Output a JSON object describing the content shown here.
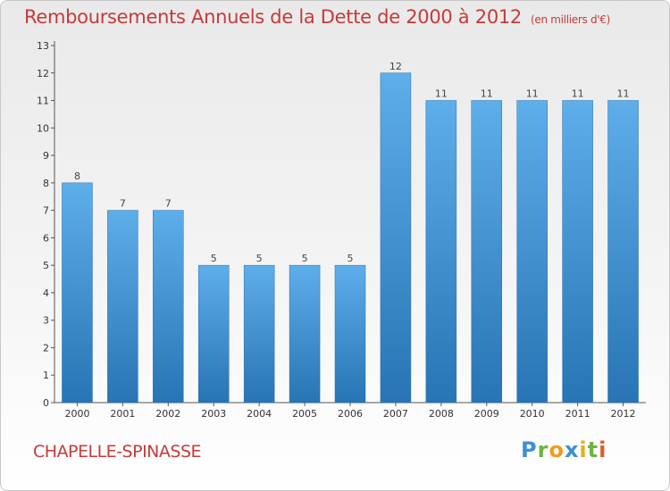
{
  "title": "Remboursements Annuels de la Dette de 2000 à 2012",
  "unit": "(en milliers d'€)",
  "commune": "CHAPELLE-SPINASSE",
  "logo": {
    "brand": "Proxiti"
  },
  "colors": {
    "bar_top": "#5aaae8",
    "bar_bottom": "#2a78b8",
    "title": "#c63a3a"
  },
  "chart_data": {
    "type": "bar",
    "title": "Remboursements Annuels de la Dette de 2000 à 2012",
    "xlabel": "",
    "ylabel": "",
    "categories": [
      "2000",
      "2001",
      "2002",
      "2003",
      "2004",
      "2005",
      "2006",
      "2007",
      "2008",
      "2009",
      "2010",
      "2011",
      "2012"
    ],
    "values": [
      8,
      7,
      7,
      5,
      5,
      5,
      5,
      12,
      11,
      11,
      11,
      11,
      11
    ],
    "ylim": [
      0,
      13
    ],
    "yticks": [
      0,
      1,
      2,
      3,
      4,
      5,
      6,
      7,
      8,
      9,
      10,
      11,
      12,
      13
    ],
    "grid": false,
    "data_labels": true
  }
}
